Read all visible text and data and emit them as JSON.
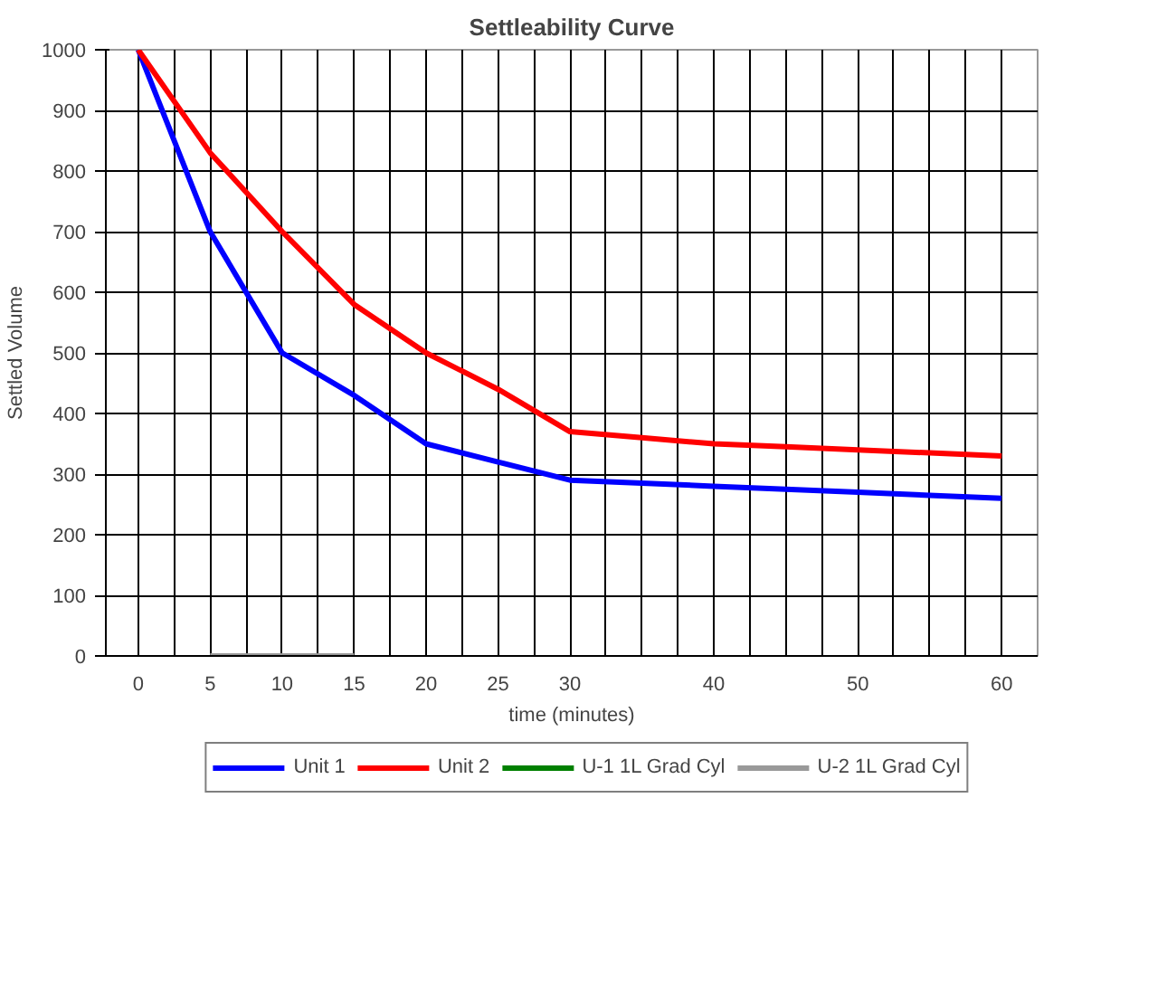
{
  "chart_data": {
    "type": "line",
    "title": "Settleability Curve",
    "xlabel": "time (minutes)",
    "ylabel": "Settled Volume",
    "categories": [
      "0",
      "5",
      "10",
      "15",
      "20",
      "25",
      "30",
      null,
      "40",
      null,
      "50",
      null,
      "60"
    ],
    "series": [
      {
        "name": "Unit 1",
        "color": "#0000ff",
        "values": [
          1000,
          700,
          500,
          430,
          350,
          320,
          290,
          285,
          280,
          275,
          270,
          265,
          260
        ]
      },
      {
        "name": "Unit 2",
        "color": "#ff0000",
        "values": [
          1000,
          830,
          700,
          580,
          500,
          440,
          370,
          360,
          350,
          345,
          340,
          335,
          330
        ]
      },
      {
        "name": "U-1 1L Grad Cyl",
        "color": "#008000",
        "values": [
          null,
          null,
          null,
          null,
          null,
          null,
          null,
          null,
          null,
          null,
          null,
          null,
          null
        ]
      },
      {
        "name": "U-2 1L Grad Cyl",
        "color": "#999999",
        "values": [
          null,
          0,
          0,
          0,
          null,
          null,
          null,
          null,
          null,
          null,
          null,
          null,
          null
        ]
      }
    ],
    "ylim": [
      0,
      1000
    ],
    "yticks": [
      0,
      100,
      200,
      300,
      400,
      500,
      600,
      700,
      800,
      900,
      1000
    ],
    "grid": true,
    "legend": "bottom",
    "marker": "none",
    "line_style": "solid"
  }
}
